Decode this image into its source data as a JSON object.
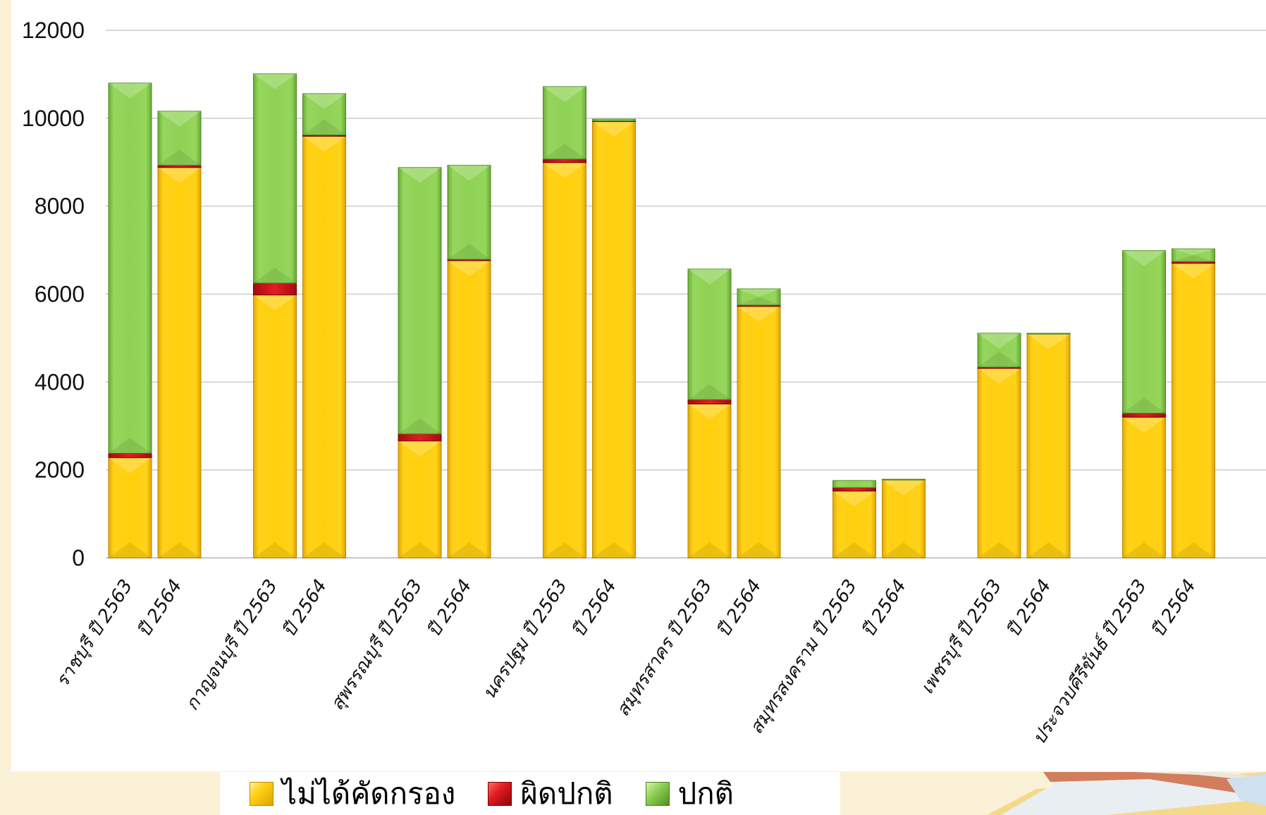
{
  "chart_data": {
    "type": "bar",
    "stacked": true,
    "title": "",
    "xlabel": "",
    "ylabel": "",
    "ylim": [
      0,
      12000
    ],
    "yticks": [
      0,
      2000,
      4000,
      6000,
      8000,
      10000,
      12000
    ],
    "grid": true,
    "legend_position": "bottom",
    "categories": [
      "ราชบุรี ปี 2563",
      "ปี 2564",
      "กาญจนบุรี ปี 2563",
      "ปี 2564",
      "สุพรรณบุรี ปี 2563",
      "ปี 2564",
      "นครปฐม ปี 2563",
      "ปี 2564",
      "สมุทรสาคร ปี 2563",
      "ปี 2564",
      "สมุทรสงคราม ปี 2563",
      "ปี 2564",
      "เพชรบุรี ปี 2563",
      "ปี 2564",
      "ประจวบคีรีขันธ์ ปี 2563",
      "ปี 2564"
    ],
    "series": [
      {
        "name": "ไม่ได้คัดกรอง",
        "color": "#f9c80e",
        "values": [
          2280,
          8880,
          5980,
          9590,
          2660,
          6760,
          8990,
          9930,
          3500,
          5720,
          1520,
          1770,
          4310,
          5090,
          3200,
          6700
        ]
      },
      {
        "name": "ผิดปกติ",
        "color": "#d8141b",
        "values": [
          100,
          50,
          270,
          30,
          160,
          30,
          80,
          10,
          100,
          30,
          80,
          0,
          30,
          0,
          90,
          40
        ]
      },
      {
        "name": "ปกติ",
        "color": "#8cd150",
        "values": [
          8420,
          1230,
          4760,
          940,
          6060,
          2140,
          1650,
          40,
          2970,
          370,
          160,
          20,
          770,
          20,
          3700,
          290
        ]
      }
    ]
  }
}
